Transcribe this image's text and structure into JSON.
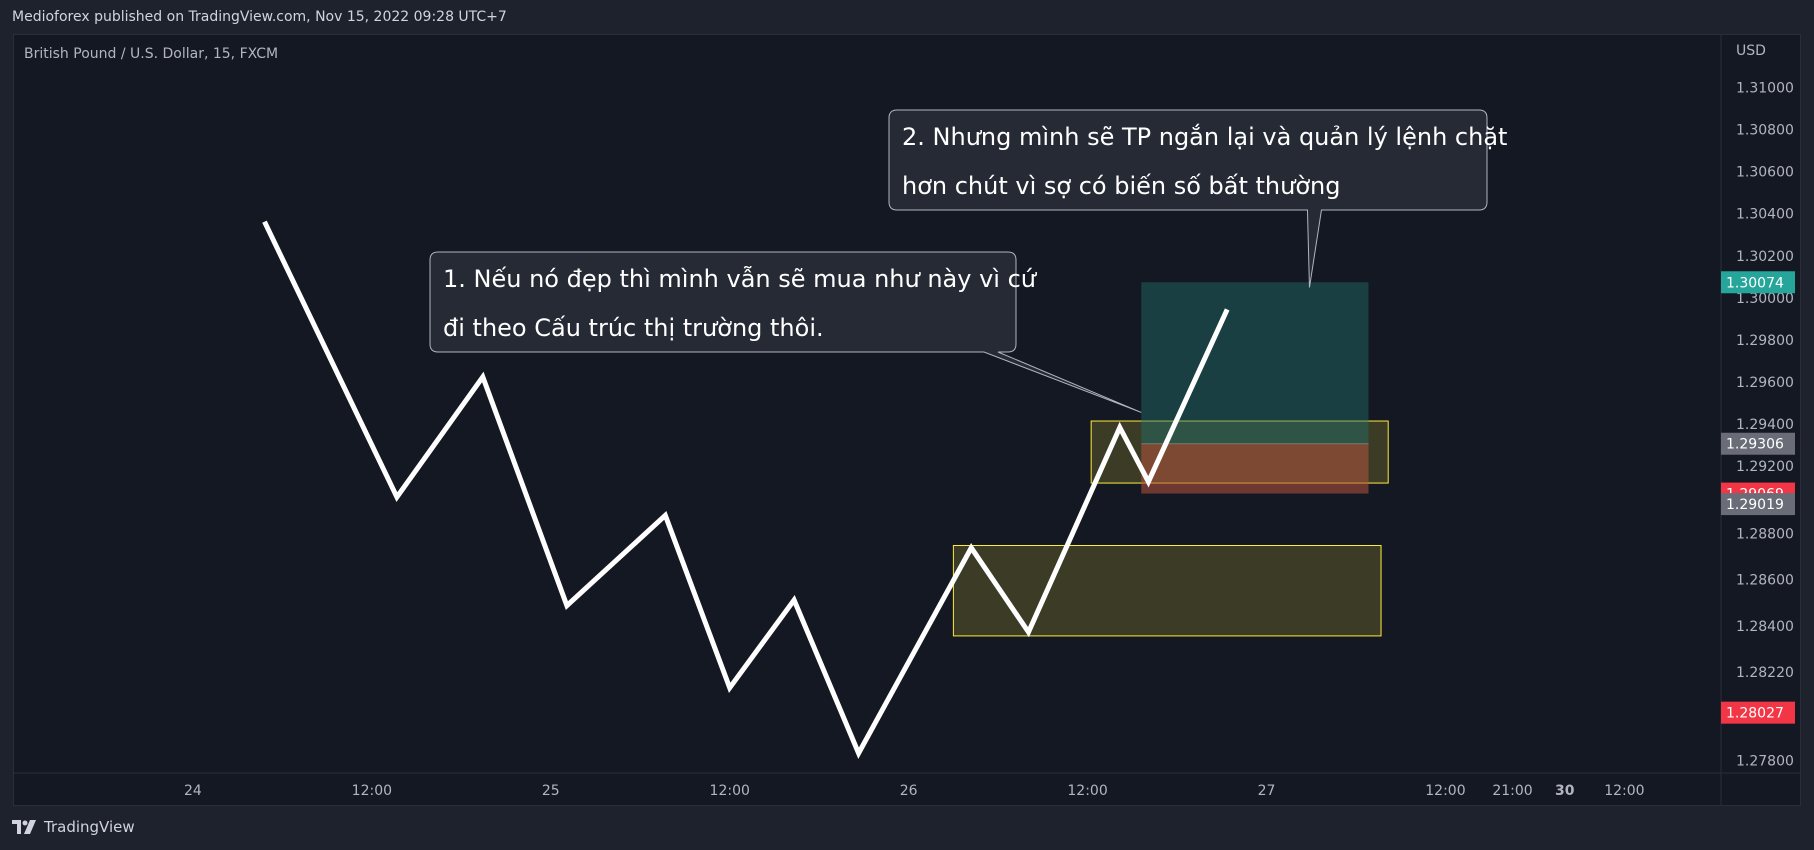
{
  "header": {
    "published_text": "Medioforex published on TradingView.com, Nov 15, 2022 09:28 UTC+7"
  },
  "footer": {
    "brand": "TradingView"
  },
  "chart_data": {
    "type": "line",
    "symbol": "British Pound / U.S. Dollar, 15, FXCM",
    "currency": "USD",
    "x_ticks": [
      {
        "label": "24",
        "x": 1.0
      },
      {
        "label": "12:00",
        "x": 2.0
      },
      {
        "label": "25",
        "x": 3.0
      },
      {
        "label": "12:00",
        "x": 4.0
      },
      {
        "label": "26",
        "x": 5.0
      },
      {
        "label": "12:00",
        "x": 6.0
      },
      {
        "label": "27",
        "x": 7.0
      },
      {
        "label": "12:00",
        "x": 8.0
      },
      {
        "label": "21:00",
        "x": 8.375
      },
      {
        "label": "30",
        "x": 8.667
      },
      {
        "label": "12:00",
        "x": 9.0
      }
    ],
    "y_ticks": [
      1.278,
      1.2822,
      1.2844,
      1.2866,
      1.2888,
      1.292,
      1.294,
      1.296,
      1.298,
      1.3,
      1.302,
      1.304,
      1.306,
      1.308,
      1.31
    ],
    "y_tick_labels": [
      "1.27800",
      "1.28220",
      "1.28400",
      "1.28600",
      "1.28800",
      "1.29200",
      "1.29400",
      "1.29600",
      "1.29800",
      "1.30000",
      "1.30200",
      "1.30400",
      "1.30600",
      "1.30800",
      "1.31000"
    ],
    "ylim": [
      1.2774,
      1.3125
    ],
    "xlim": [
      0.0,
      9.54
    ],
    "series": [
      {
        "values": [
          {
            "x": 1.4,
            "y": 1.30362
          },
          {
            "x": 2.14,
            "y": 1.29052
          },
          {
            "x": 2.62,
            "y": 1.29624
          },
          {
            "x": 3.09,
            "y": 1.28536
          },
          {
            "x": 3.64,
            "y": 1.28965
          },
          {
            "x": 4.0,
            "y": 1.28145
          },
          {
            "x": 4.36,
            "y": 1.28563
          },
          {
            "x": 4.72,
            "y": 1.27834
          },
          {
            "x": 5.35,
            "y": 1.28811
          },
          {
            "x": 5.67,
            "y": 1.2841
          },
          {
            "x": 6.18,
            "y": 1.29383
          },
          {
            "x": 6.34,
            "y": 1.29125
          },
          {
            "x": 6.78,
            "y": 1.29945
          }
        ]
      }
    ],
    "price_labels": [
      {
        "value": "1.30074",
        "y": 1.30074,
        "color": "#26a69a"
      },
      {
        "value": "1.29306",
        "y": 1.29306,
        "color": "#6a6d78"
      },
      {
        "value": "1.29069",
        "y": 1.29069,
        "color": "#f23645"
      },
      {
        "value": "1.29019",
        "y": 1.29019,
        "color": "#6a6d78"
      },
      {
        "value": "1.28027",
        "y": 1.28027,
        "color": "#f23645"
      }
    ],
    "zones": [
      {
        "name": "upper-demand-zone",
        "x0": 6.02,
        "x1": 7.68,
        "y0": 1.29119,
        "y1": 1.29414,
        "fill": "#5c5b2a",
        "stroke": "#ffeb3b"
      },
      {
        "name": "lower-demand-zone",
        "x0": 5.25,
        "x1": 7.64,
        "y0": 1.28392,
        "y1": 1.28822,
        "fill": "#5c5b2a",
        "stroke": "#ffeb3b"
      }
    ],
    "position": {
      "x0": 6.3,
      "x1": 7.57,
      "entry": 1.29306,
      "target": 1.30074,
      "stop": 1.29069,
      "profit_color": "#1f6f6a",
      "loss_color": "#b5533c"
    },
    "callouts": [
      {
        "name": "callout-1",
        "lines": [
          "1. Nếu nó đẹp thì mình vẫn sẽ mua như này vì cứ",
          "đi theo Cấu trúc thị trường thôi."
        ],
        "pointer": {
          "x": 6.3,
          "y": 1.29455
        }
      },
      {
        "name": "callout-2",
        "lines": [
          "2. Nhưng mình sẽ TP ngắn lại và quản lý lệnh chặt",
          "hơn chút vì sợ có biến số bất thường"
        ],
        "pointer": {
          "x": 7.24,
          "y": 1.30049
        }
      }
    ]
  },
  "colors": {
    "background": "#141823",
    "line": "#ffffff",
    "axis_text": "#b2b5be"
  }
}
